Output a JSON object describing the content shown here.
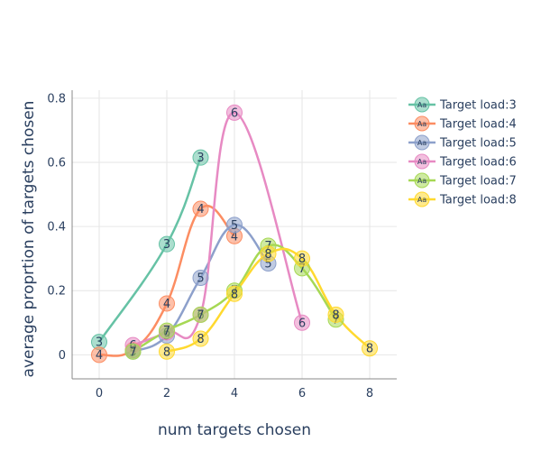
{
  "chart_data": {
    "type": "line",
    "xlabel": "num targets chosen",
    "ylabel": "average proprtion of targets chosen",
    "xlim": [
      -0.8,
      8.8
    ],
    "ylim": [
      -0.075,
      0.825
    ],
    "x_ticks": [
      0,
      2,
      4,
      6,
      8
    ],
    "y_ticks": [
      0,
      0.2,
      0.4,
      0.6,
      0.8
    ],
    "x_tick_labels": [
      "0",
      "2",
      "4",
      "6",
      "8"
    ],
    "y_tick_labels": [
      "0",
      "0.2",
      "0.4",
      "0.6",
      "0.8"
    ],
    "grid": true,
    "legend_position": "top-right",
    "legend_marker_text": "Aa",
    "series": [
      {
        "name": "Target load:3",
        "marker_label": "3",
        "color": "#66c2a5",
        "x": [
          0,
          2,
          3
        ],
        "y": [
          0.04,
          0.345,
          0.615
        ]
      },
      {
        "name": "Target load:4",
        "marker_label": "4",
        "color": "#fc8d62",
        "x": [
          0,
          1,
          2,
          3,
          4
        ],
        "y": [
          0.0,
          0.015,
          0.16,
          0.455,
          0.37
        ]
      },
      {
        "name": "Target load:5",
        "marker_label": "5",
        "color": "#8da0cb",
        "x": [
          1,
          2,
          3,
          4,
          5
        ],
        "y": [
          0.01,
          0.06,
          0.24,
          0.405,
          0.285
        ]
      },
      {
        "name": "Target load:6",
        "marker_label": "6",
        "color": "#e78ac3",
        "x": [
          1,
          2,
          3,
          4,
          6
        ],
        "y": [
          0.03,
          0.07,
          0.125,
          0.755,
          0.1
        ]
      },
      {
        "name": "Target load:7",
        "marker_label": "7",
        "color": "#a6d854",
        "x": [
          1,
          2,
          3,
          4,
          5,
          6,
          7
        ],
        "y": [
          0.01,
          0.075,
          0.125,
          0.2,
          0.34,
          0.27,
          0.11
        ]
      },
      {
        "name": "Target load:8",
        "marker_label": "8",
        "color": "#ffd92f",
        "x": [
          2,
          3,
          4,
          5,
          6,
          7,
          8
        ],
        "y": [
          0.01,
          0.05,
          0.19,
          0.315,
          0.3,
          0.125,
          0.02
        ]
      }
    ]
  }
}
